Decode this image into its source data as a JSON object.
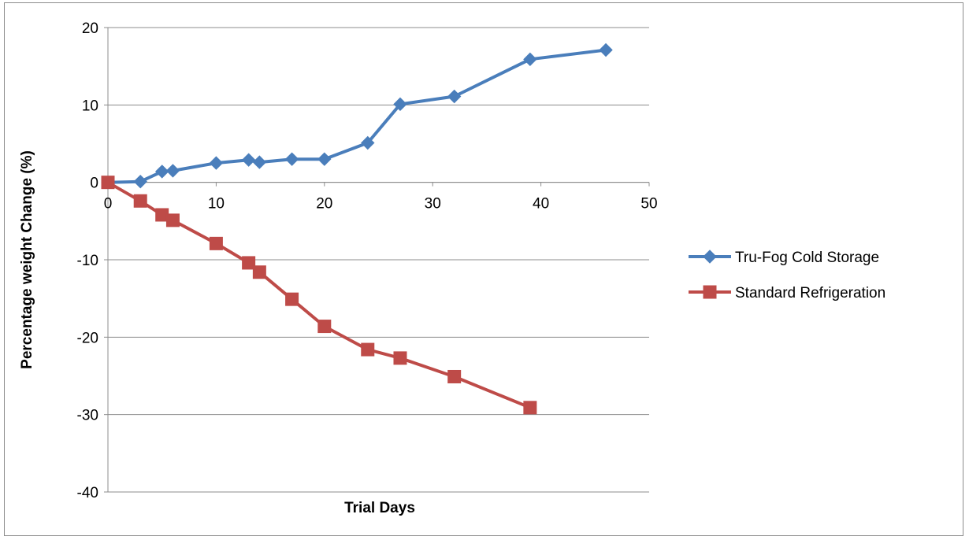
{
  "chart_data": {
    "type": "line",
    "title": "",
    "xlabel": "Trial Days",
    "ylabel": "Percentage weight Change (%)",
    "xlim": [
      0,
      50
    ],
    "ylim": [
      -40,
      20
    ],
    "x_ticks": [
      0,
      10,
      20,
      30,
      40,
      50
    ],
    "y_ticks": [
      20,
      10,
      0,
      -10,
      -20,
      -30,
      -40
    ],
    "grid": "horizontal",
    "legend_position": "right",
    "series": [
      {
        "name": "Tru-Fog Cold Storage",
        "color": "#4a7ebb",
        "marker": "diamond",
        "points": [
          {
            "x": 0,
            "y": 0
          },
          {
            "x": 3,
            "y": 0.1
          },
          {
            "x": 5,
            "y": 1.4
          },
          {
            "x": 6,
            "y": 1.5
          },
          {
            "x": 10,
            "y": 2.5
          },
          {
            "x": 13,
            "y": 2.9
          },
          {
            "x": 14,
            "y": 2.6
          },
          {
            "x": 17,
            "y": 3.0
          },
          {
            "x": 20,
            "y": 3.0
          },
          {
            "x": 24,
            "y": 5.1
          },
          {
            "x": 27,
            "y": 10.1
          },
          {
            "x": 32,
            "y": 11.1
          },
          {
            "x": 39,
            "y": 15.9
          },
          {
            "x": 46,
            "y": 17.1
          }
        ]
      },
      {
        "name": "Standard Refrigeration",
        "color": "#be4b48",
        "marker": "square",
        "points": [
          {
            "x": 0,
            "y": 0
          },
          {
            "x": 3,
            "y": -2.4
          },
          {
            "x": 5,
            "y": -4.2
          },
          {
            "x": 6,
            "y": -4.9
          },
          {
            "x": 10,
            "y": -7.9
          },
          {
            "x": 13,
            "y": -10.4
          },
          {
            "x": 14,
            "y": -11.6
          },
          {
            "x": 17,
            "y": -15.1
          },
          {
            "x": 20,
            "y": -18.6
          },
          {
            "x": 24,
            "y": -21.6
          },
          {
            "x": 27,
            "y": -22.7
          },
          {
            "x": 32,
            "y": -25.1
          },
          {
            "x": 39,
            "y": -29.1
          }
        ]
      }
    ]
  }
}
